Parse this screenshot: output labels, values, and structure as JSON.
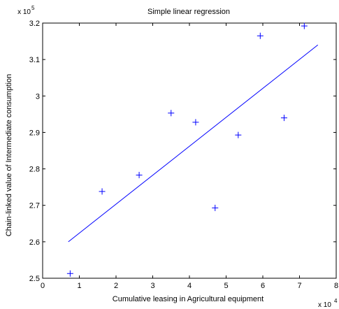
{
  "chart_data": {
    "type": "scatter",
    "title": "Simple linear regression",
    "xlabel": "Cumulative leasing in Agricultural equipment",
    "ylabel": "Chain-linked value of Intermediate consumption",
    "x_multiplier": {
      "base": "x 10",
      "exponent": "4"
    },
    "y_multiplier": {
      "base": "x 10",
      "exponent": "5"
    },
    "xlim": [
      0,
      8
    ],
    "ylim": [
      2.5,
      3.2
    ],
    "x_ticks": [
      0,
      1,
      2,
      3,
      4,
      5,
      6,
      7,
      8
    ],
    "x_tick_labels": [
      "0",
      "1",
      "2",
      "3",
      "4",
      "5",
      "6",
      "7",
      "8"
    ],
    "y_ticks": [
      2.5,
      2.6,
      2.7,
      2.8,
      2.9,
      3.0,
      3.1,
      3.2
    ],
    "y_tick_labels": [
      "2.5",
      "2.6",
      "2.7",
      "2.8",
      "2.9",
      "3",
      "3.1",
      "3.2"
    ],
    "grid": false,
    "series": [
      {
        "kind": "points",
        "marker": "+",
        "color": "#0000ff",
        "x": [
          0.75,
          1.62,
          2.63,
          3.5,
          4.17,
          4.7,
          5.33,
          5.93,
          6.58,
          7.13
        ],
        "y": [
          2.513,
          2.738,
          2.783,
          2.953,
          2.928,
          2.693,
          2.893,
          3.165,
          2.94,
          3.192
        ]
      },
      {
        "kind": "fit-line",
        "color": "#0000ff",
        "x": [
          0.7,
          7.5
        ],
        "y": [
          2.6,
          3.14
        ]
      }
    ]
  }
}
